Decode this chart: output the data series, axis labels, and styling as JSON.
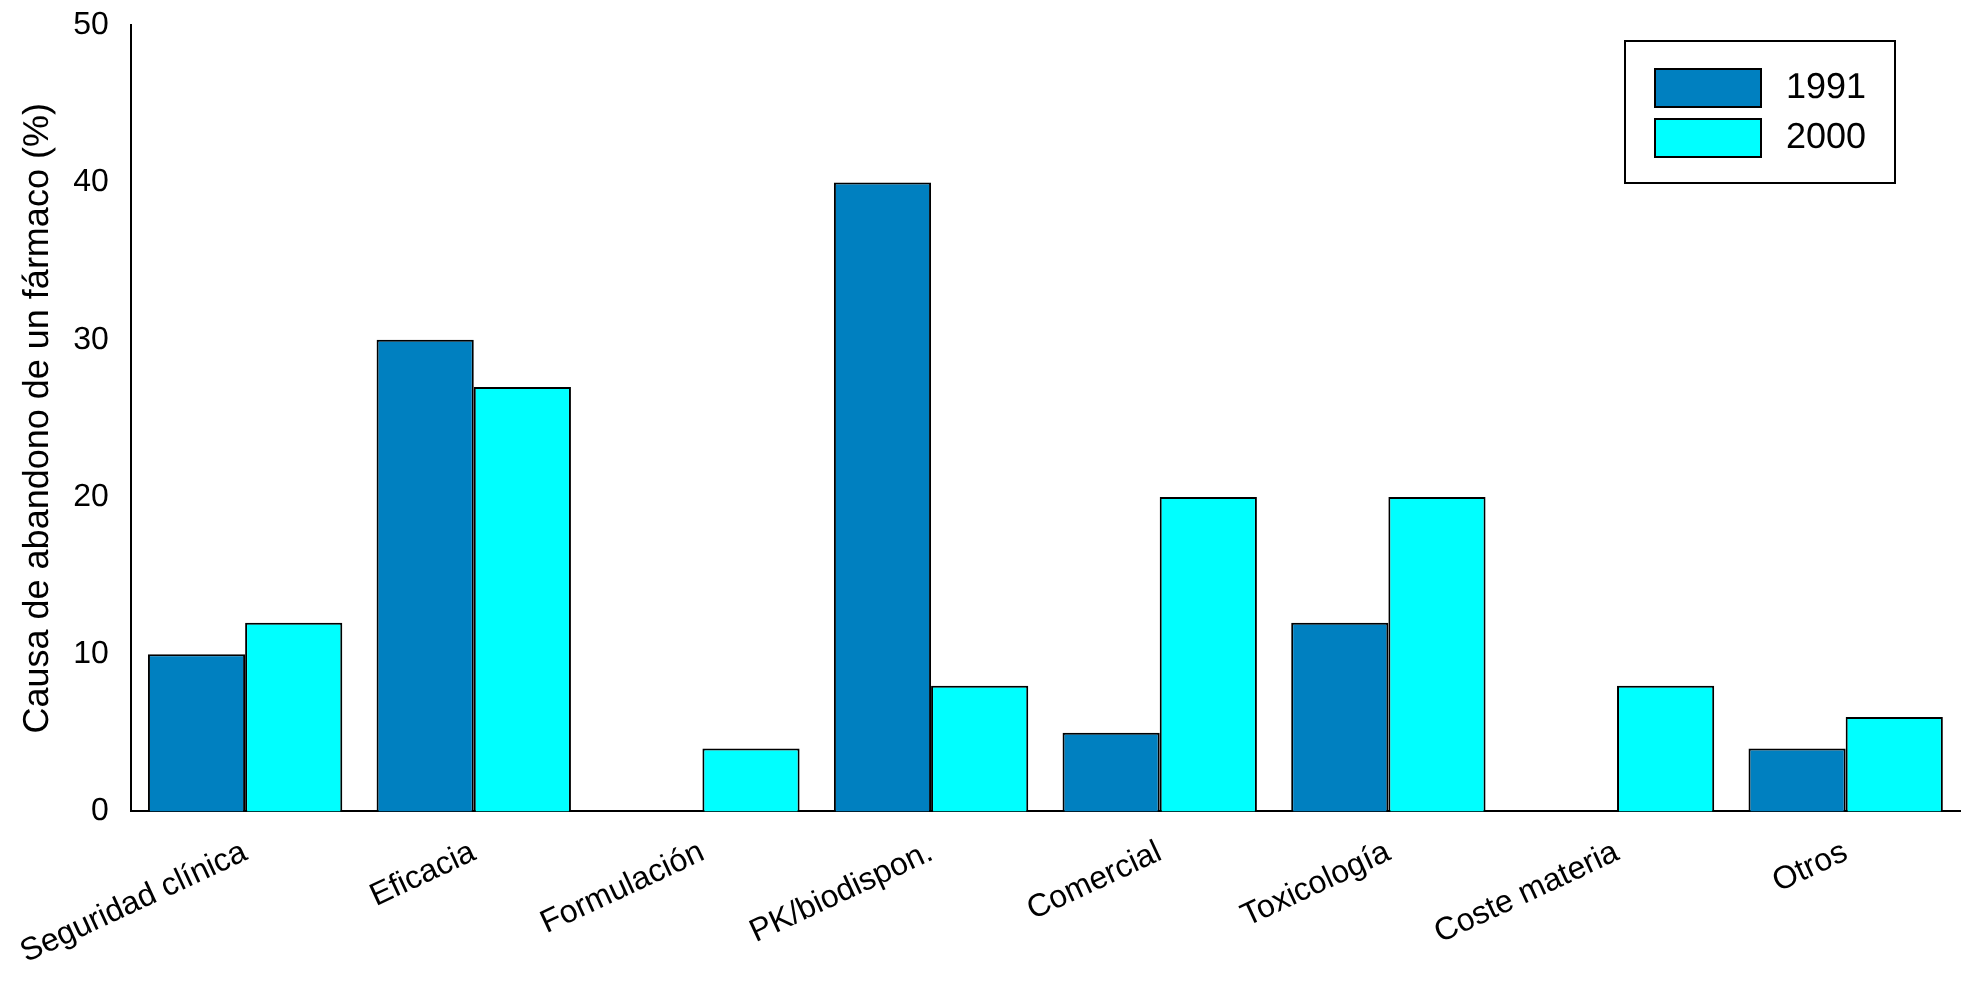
{
  "chart_data": {
    "type": "bar",
    "ylabel": "Causa de abandono de un fármaco (%)",
    "categories": [
      "Seguridad clínica",
      "Eficacia",
      "Formulación",
      "PK/biodispon.",
      "Comercial",
      "Toxicología",
      "Coste materia",
      "Otros"
    ],
    "series": [
      {
        "name": "1991",
        "color": "#0080c0",
        "values": [
          10,
          30,
          0,
          40,
          5,
          12,
          0,
          4
        ]
      },
      {
        "name": "2000",
        "color": "#00ffff",
        "values": [
          12,
          27,
          4,
          8,
          20,
          20,
          8,
          6
        ]
      }
    ],
    "ylim": [
      0,
      50
    ],
    "yticks": [
      0,
      10,
      20,
      30,
      40,
      50
    ],
    "grid": false,
    "legend": "top right"
  }
}
